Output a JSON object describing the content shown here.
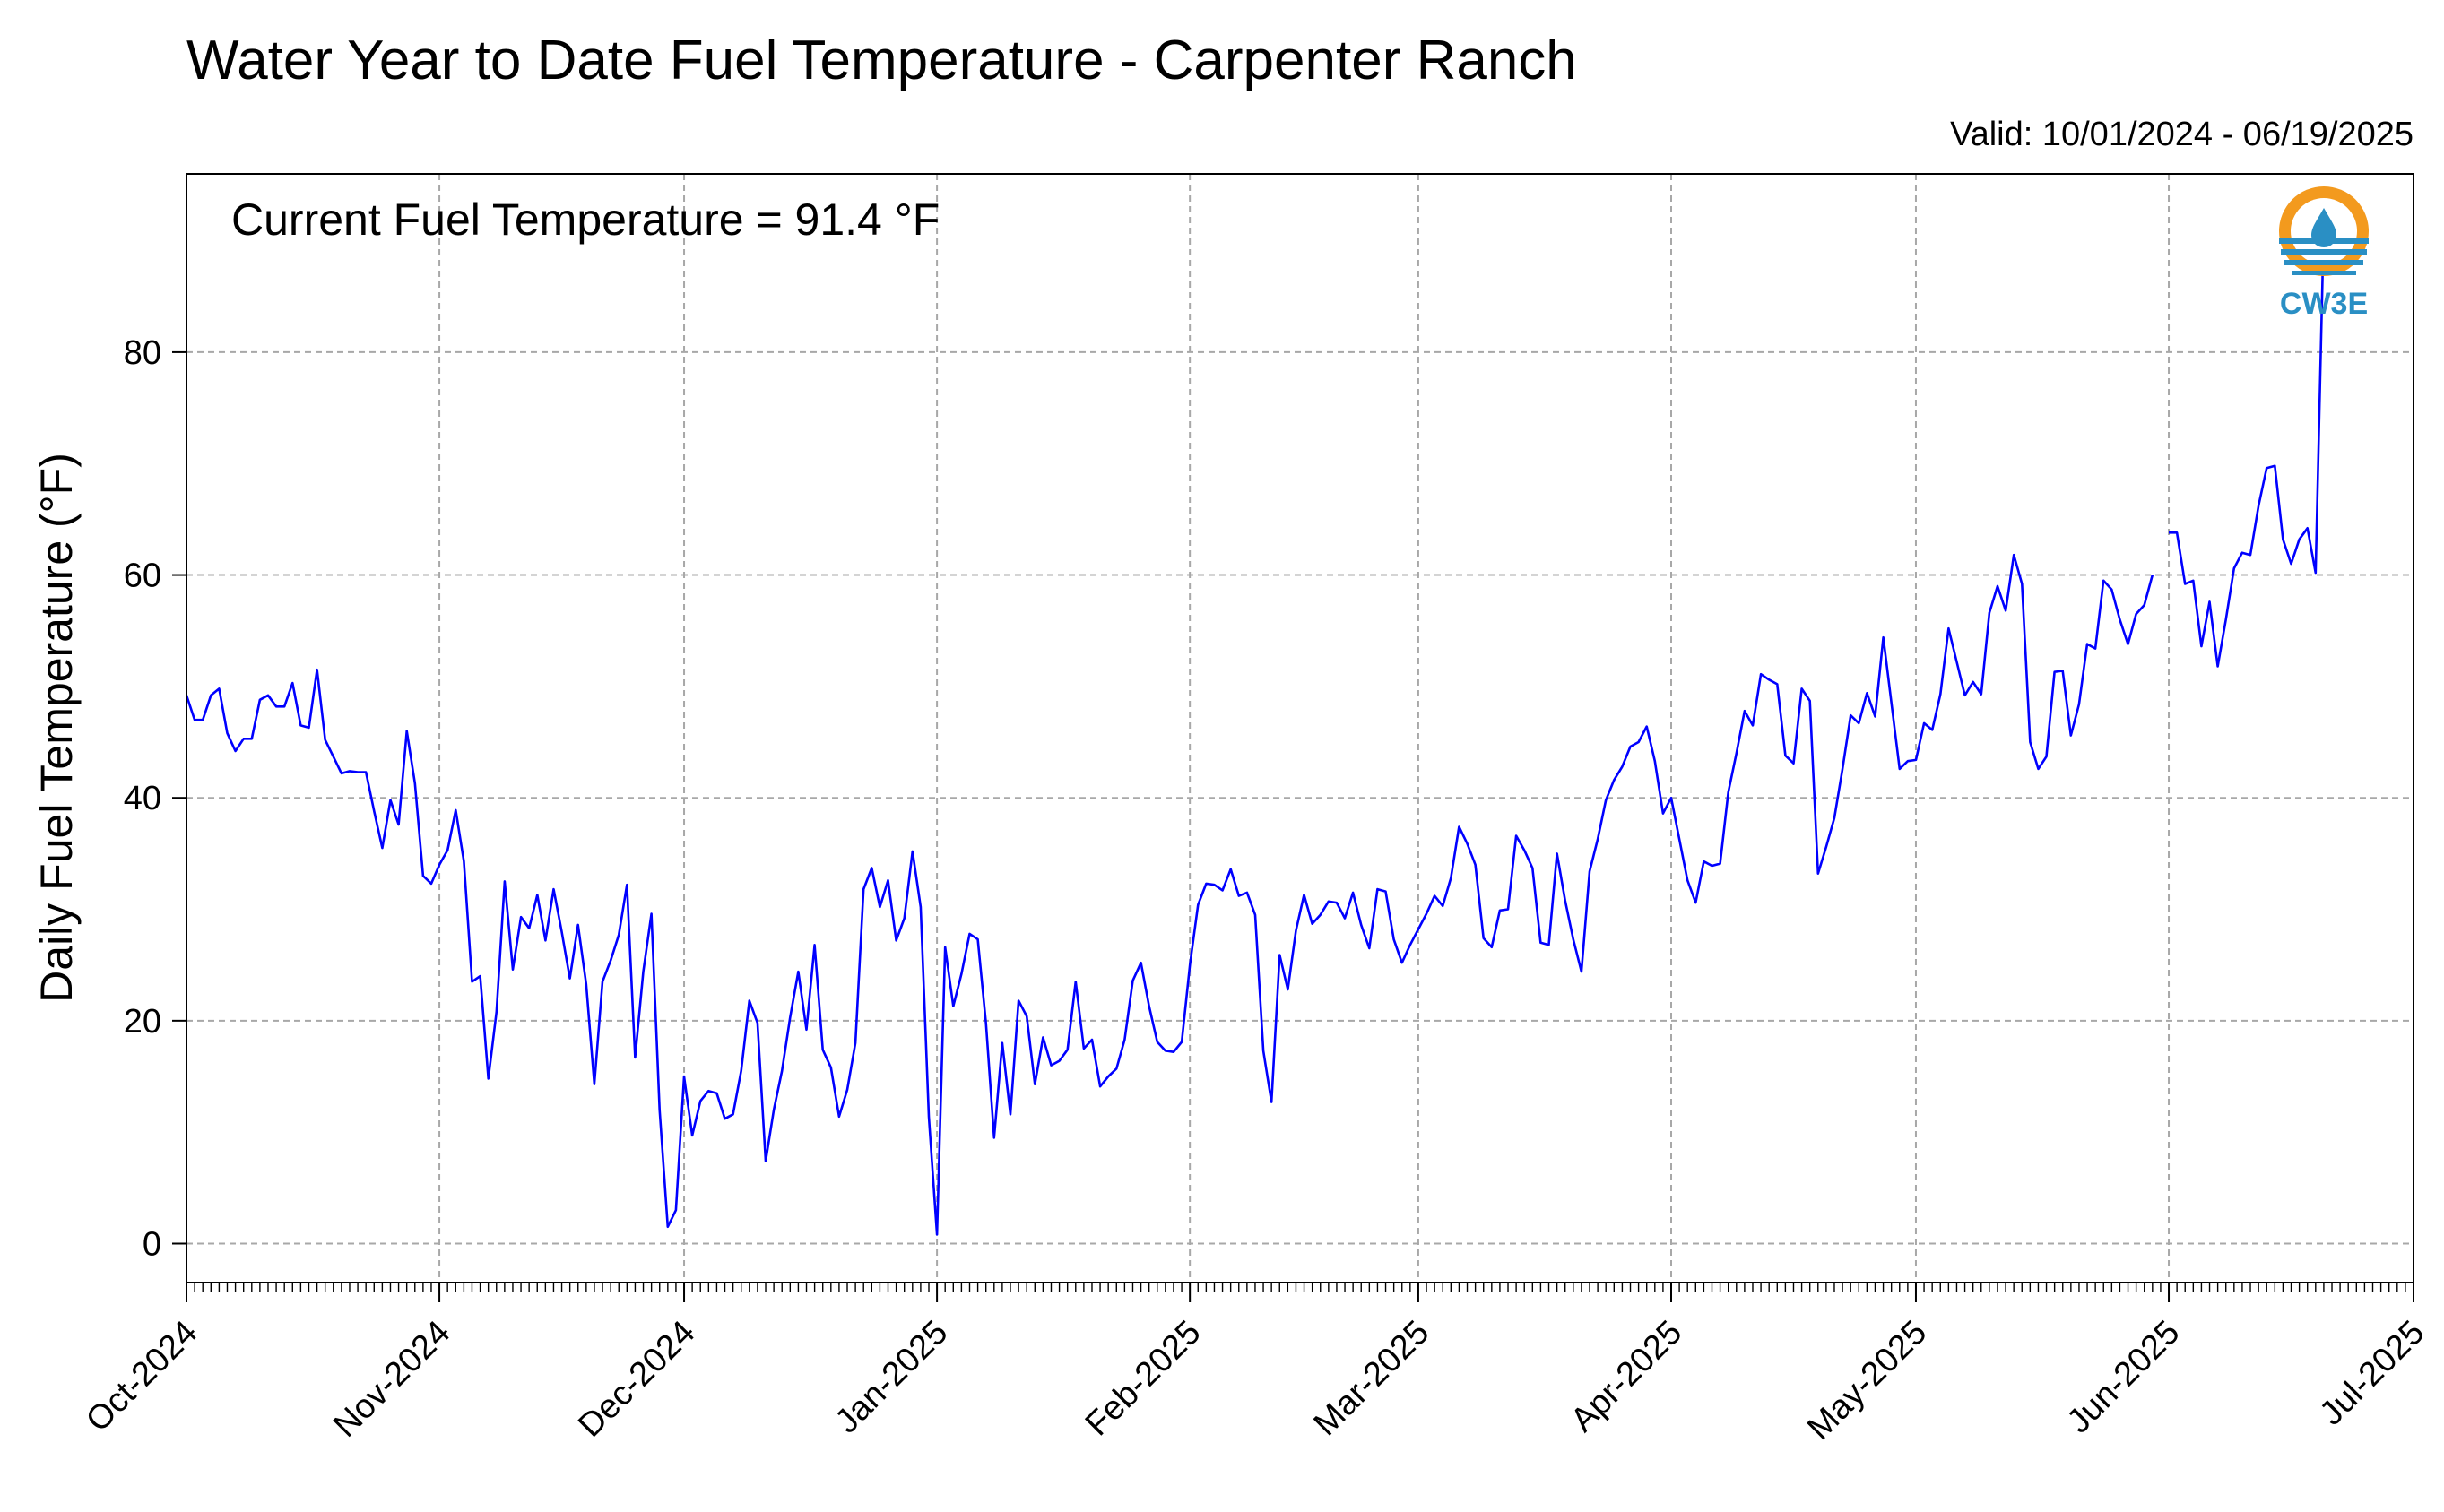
{
  "chart_data": {
    "type": "line",
    "title": "Water Year to Date Fuel Temperature - Carpenter Ranch",
    "valid_label": "Valid: 10/01/2024 - 06/19/2025",
    "annotation": "Current Fuel Temperature = 91.4  °F",
    "ylabel": "Daily Fuel Temperature (°F)",
    "xlabel": "",
    "xlim": [
      "2024-10-01",
      "2025-07-01"
    ],
    "ylim": [
      -3.5,
      96
    ],
    "yticks": [
      0,
      20,
      40,
      60,
      80
    ],
    "xticks": [
      {
        "date": "2024-10-01",
        "label": "Oct-2024"
      },
      {
        "date": "2024-11-01",
        "label": "Nov-2024"
      },
      {
        "date": "2024-12-01",
        "label": "Dec-2024"
      },
      {
        "date": "2025-01-01",
        "label": "Jan-2025"
      },
      {
        "date": "2025-02-01",
        "label": "Feb-2025"
      },
      {
        "date": "2025-03-01",
        "label": "Mar-2025"
      },
      {
        "date": "2025-04-01",
        "label": "Apr-2025"
      },
      {
        "date": "2025-05-01",
        "label": "May-2025"
      },
      {
        "date": "2025-06-01",
        "label": "Jun-2025"
      },
      {
        "date": "2025-07-01",
        "label": "Jul-2025"
      }
    ],
    "grid": true,
    "line_color": "#0000ff",
    "logo_label": "CW3E",
    "series": [
      {
        "segments": [
          {
            "start_date": "2024-10-01",
            "values": [
              49.2,
              47.0,
              47.0,
              49.2,
              49.8,
              45.8,
              44.2,
              45.3,
              45.3,
              48.8,
              49.2,
              48.2,
              48.2,
              50.3,
              46.5,
              46.3,
              51.5,
              45.2,
              43.7,
              42.2,
              42.4,
              42.3,
              42.3,
              38.8,
              35.5,
              39.8,
              37.6,
              46.0,
              41.3,
              33.0,
              32.3,
              34.0,
              35.3,
              38.9,
              34.3,
              23.5,
              24.0,
              14.8,
              20.8,
              32.5,
              24.6,
              29.3,
              28.3,
              31.3,
              27.2,
              31.8,
              28.0,
              23.8,
              28.6,
              23.3,
              14.3,
              23.5,
              25.4,
              27.7,
              32.2,
              16.7,
              24.4,
              29.6,
              12.0,
              1.5,
              3.0,
              15.0,
              9.7,
              12.8,
              13.7,
              13.5,
              11.2,
              11.6,
              15.5,
              21.8,
              19.8,
              7.4,
              12.0,
              15.5,
              20.3,
              24.4,
              19.2,
              26.8,
              17.4,
              15.8,
              11.4,
              13.8,
              18.0,
              31.8,
              33.7,
              30.2,
              32.6,
              27.2,
              29.2,
              35.2,
              30.2,
              11.4,
              0.8,
              26.6,
              21.3,
              24.2,
              27.8,
              27.3,
              19.8,
              9.5,
              18.0,
              11.6,
              21.8,
              20.4,
              14.3,
              18.5,
              16.0,
              16.4,
              17.4,
              23.5,
              17.5,
              18.3,
              14.1,
              15.0,
              15.7,
              18.3,
              23.6,
              25.2,
              21.3,
              18.1,
              17.3,
              17.2,
              18.1,
              25.0,
              30.4,
              32.3,
              32.2,
              31.7,
              33.6,
              31.2,
              31.5,
              29.5,
              17.3,
              12.7,
              25.9,
              22.8,
              28.1,
              31.3,
              28.7,
              29.5,
              30.7,
              30.6,
              29.2,
              31.5,
              28.6,
              26.5,
              31.8,
              31.6,
              27.3,
              25.2,
              26.8,
              28.2,
              29.6,
              31.2,
              30.3,
              32.8,
              37.4,
              35.9,
              34.0,
              27.4,
              26.6,
              29.9,
              30.0,
              36.6,
              35.3,
              33.7,
              27.0,
              26.8,
              35.0,
              30.8,
              27.3,
              24.4,
              33.4,
              36.3,
              39.8,
              41.6,
              42.8,
              44.6,
              45.0,
              46.4,
              43.3,
              38.6,
              40.0,
              36.3,
              32.6,
              30.6,
              34.3,
              33.9,
              34.1,
              40.5,
              44.0,
              47.8,
              46.5,
              51.1,
              50.6,
              50.2,
              43.8,
              43.1,
              49.8,
              48.7,
              33.2,
              35.6,
              38.2,
              42.6,
              47.4,
              46.7,
              49.4,
              47.3,
              54.4,
              48.5,
              42.6,
              43.3,
              43.4,
              46.7,
              46.1,
              49.3,
              55.2,
              52.2,
              49.2,
              50.4,
              49.3,
              56.6,
              59.0,
              56.8,
              61.8,
              59.2,
              45.0,
              42.6,
              43.7,
              51.3,
              51.4,
              45.6,
              48.4,
              53.8,
              53.4,
              59.5,
              58.7,
              56.0,
              53.8,
              56.5,
              57.3,
              60.0
            ]
          },
          {
            "start_date": "2025-06-01",
            "values": [
              63.8,
              63.8,
              59.2,
              59.5,
              53.6,
              57.6,
              51.8,
              56.0,
              60.6,
              62.0,
              61.8,
              66.2,
              69.6,
              69.8,
              63.2,
              61.0,
              63.2,
              64.2,
              60.2,
              91.4
            ]
          }
        ]
      }
    ]
  }
}
